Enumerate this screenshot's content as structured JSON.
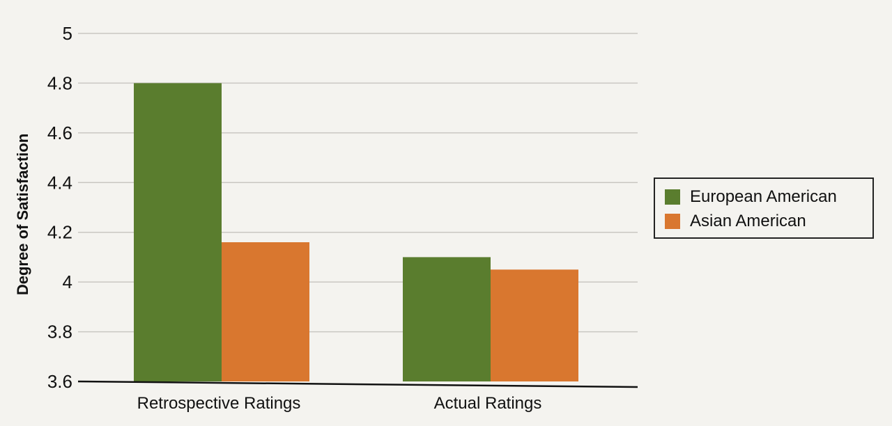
{
  "chart_data": {
    "type": "bar",
    "ylabel": "Degree of Satisfaction",
    "xlabel": "",
    "categories": [
      "Retrospective Ratings",
      "Actual Ratings"
    ],
    "series": [
      {
        "name": "European American",
        "values": [
          4.8,
          4.1
        ],
        "color": "#5a7d2e"
      },
      {
        "name": "Asian American",
        "values": [
          4.16,
          4.05
        ],
        "color": "#d9772f"
      }
    ],
    "ylim": [
      3.6,
      5
    ],
    "yticks": [
      3.6,
      3.8,
      4,
      4.2,
      4.4,
      4.6,
      4.8,
      5
    ],
    "ytick_labels": [
      "3.6",
      "3.8",
      "4",
      "4.2",
      "4.4",
      "4.6",
      "4.8",
      "5"
    ],
    "grid": true,
    "legend_position": "right"
  }
}
